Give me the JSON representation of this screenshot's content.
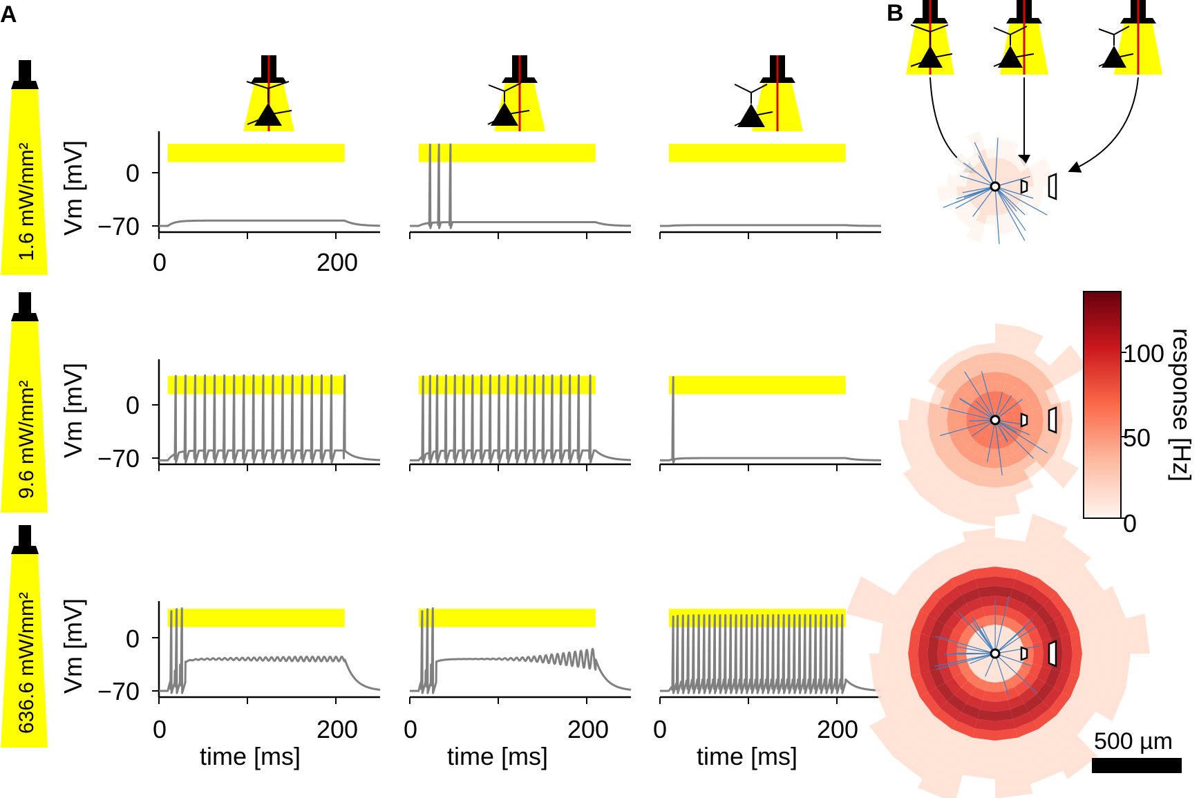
{
  "panel_labels": {
    "a": "A",
    "b": "B"
  },
  "intensities": [
    "1.6 mW/mm²",
    "9.6 mW/mm²",
    "636.6 mW/mm²"
  ],
  "axes": {
    "ylabel": "Vm [mV]",
    "xlabel": "time [ms]",
    "yticks": [
      "0",
      "−70"
    ],
    "xtick_0": "0",
    "xtick_200": "200"
  },
  "colorbar": {
    "label": "response [Hz]",
    "ticks": [
      "0",
      "50",
      "100"
    ],
    "max": 130
  },
  "scale_bar": {
    "label": "500 µm"
  },
  "colors": {
    "light": "#ffff00",
    "trace": "#808080",
    "fiber_line": "#e00000",
    "neuron": "#000000",
    "dendrite": "#3a7fc4"
  },
  "chart_data": {
    "type": "line",
    "xlabel": "time [ms]",
    "ylabel": "Vm [mV]",
    "xlim": [
      0,
      250
    ],
    "ylim": [
      -75,
      50
    ],
    "stimulus_window_ms": [
      10,
      210
    ],
    "rows": [
      "1.6 mW/mm²",
      "9.6 mW/mm²",
      "636.6 mW/mm²"
    ],
    "columns": [
      "fiber on soma",
      "fiber near soma",
      "fiber distal to soma"
    ],
    "panels": [
      [
        {
          "baseline": -70,
          "plateau": -63,
          "spike_times": [],
          "spike_peak": 40
        },
        {
          "baseline": -70,
          "plateau": -65,
          "spike_times": [
            22,
            32,
            45
          ],
          "spike_peak": 40
        },
        {
          "baseline": -70,
          "plateau": -69,
          "spike_times": [],
          "spike_peak": 40
        }
      ],
      [
        {
          "baseline": -73,
          "plateau": -60,
          "spike_times": [
            18,
            29,
            40,
            51,
            62,
            73,
            84,
            95,
            106,
            117,
            128,
            139,
            150,
            161,
            172,
            183,
            194,
            209
          ],
          "spike_peak": 40
        },
        {
          "baseline": -73,
          "plateau": -60,
          "spike_times": [
            14,
            22,
            30,
            40,
            50,
            60,
            70,
            80,
            90,
            100,
            110,
            120,
            130,
            140,
            150,
            160,
            170,
            180,
            190,
            203
          ],
          "spike_peak": 40
        },
        {
          "baseline": -73,
          "plateau": -70,
          "spike_times": [
            14
          ],
          "spike_peak": 40
        }
      ],
      [
        {
          "baseline": -70,
          "plateau": -28,
          "spike_times": [
            13,
            19,
            25
          ],
          "spike_peak": 35,
          "oscillation": 3
        },
        {
          "baseline": -70,
          "plateau": -28,
          "spike_times": [
            13,
            19,
            25
          ],
          "spike_peak": 35,
          "oscillation": 14
        },
        {
          "baseline": -70,
          "plateau": -55,
          "spike_times": [
            14,
            19,
            25,
            31,
            37,
            43,
            49,
            55,
            61,
            67,
            73,
            79,
            85,
            91,
            97,
            103,
            109,
            115,
            121,
            127,
            133,
            139,
            145,
            151,
            157,
            163,
            169,
            175,
            181,
            187,
            193,
            199,
            205
          ],
          "spike_peak": 30
        }
      ]
    ]
  }
}
